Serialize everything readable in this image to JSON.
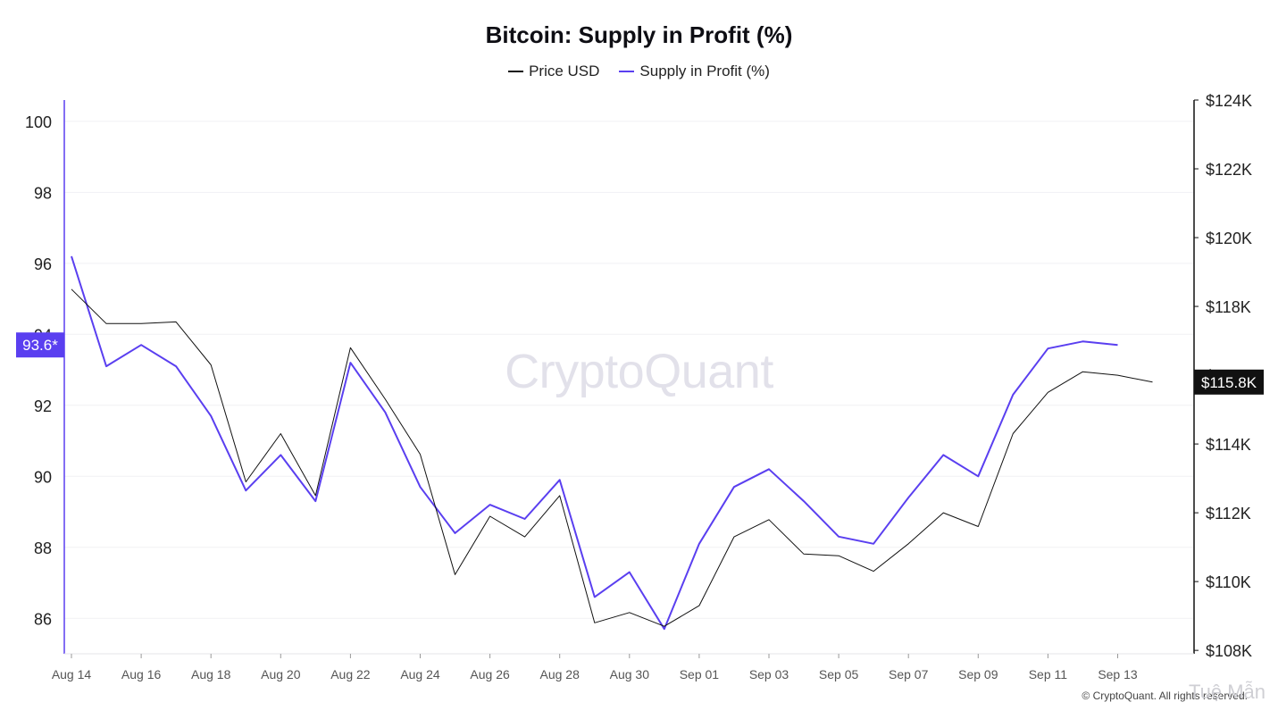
{
  "header": {
    "title": "Bitcoin: Supply in Profit (%)"
  },
  "legend": [
    {
      "label": "Price USD",
      "color": "#111111"
    },
    {
      "label": "Supply in Profit (%)",
      "color": "#5a3ff0"
    }
  ],
  "watermark": "CryptoQuant",
  "copyright": "© CryptoQuant. All rights reserved.",
  "overlay_text": "Tuệ Mẫn",
  "colors": {
    "supply_line": "#5a3ff0",
    "price_line": "#111111",
    "left_badge_bg": "#5a3ff0",
    "right_badge_bg": "#111111",
    "grid": "#f1f1f4"
  },
  "chart_data": {
    "type": "line",
    "title": "Bitcoin: Supply in Profit (%)",
    "x": [
      "Aug 14",
      "Aug 15",
      "Aug 16",
      "Aug 17",
      "Aug 18",
      "Aug 19",
      "Aug 20",
      "Aug 21",
      "Aug 22",
      "Aug 23",
      "Aug 24",
      "Aug 25",
      "Aug 26",
      "Aug 27",
      "Aug 28",
      "Aug 29",
      "Aug 30",
      "Aug 31",
      "Sep 01",
      "Sep 02",
      "Sep 03",
      "Sep 04",
      "Sep 05",
      "Sep 06",
      "Sep 07",
      "Sep 08",
      "Sep 09",
      "Sep 10",
      "Sep 11",
      "Sep 12",
      "Sep 13",
      "Sep 14"
    ],
    "x_ticks": [
      "Aug 14",
      "Aug 16",
      "Aug 18",
      "Aug 20",
      "Aug 22",
      "Aug 24",
      "Aug 26",
      "Aug 28",
      "Aug 30",
      "Sep 01",
      "Sep 03",
      "Sep 05",
      "Sep 07",
      "Sep 09",
      "Sep 11",
      "Sep 13"
    ],
    "series": [
      {
        "name": "Supply in Profit (%)",
        "axis": "left",
        "values": [
          96.2,
          93.1,
          93.7,
          93.1,
          91.7,
          89.6,
          90.6,
          89.3,
          93.2,
          91.8,
          89.7,
          88.4,
          89.2,
          88.8,
          89.9,
          86.6,
          87.3,
          85.7,
          88.1,
          89.7,
          90.2,
          89.3,
          88.3,
          88.1,
          89.4,
          90.6,
          90.0,
          92.3,
          93.6,
          93.8,
          93.7,
          null
        ],
        "last_label": "93.6*"
      },
      {
        "name": "Price USD",
        "axis": "right",
        "values": [
          118500,
          117500,
          117500,
          117550,
          116300,
          112900,
          114300,
          112500,
          116800,
          115300,
          113700,
          110200,
          111900,
          111300,
          112500,
          108800,
          109100,
          108700,
          109300,
          111300,
          111800,
          110800,
          110750,
          110300,
          111100,
          112000,
          111600,
          114300,
          115500,
          116100,
          116000,
          115800
        ],
        "last_label": "$115.8K"
      }
    ],
    "y_left": {
      "ticks": [
        86,
        88,
        90,
        92,
        94,
        96,
        98,
        100
      ],
      "ylim": [
        85,
        100.6
      ]
    },
    "y_right": {
      "ticks": [
        "$108K",
        "$110K",
        "$112K",
        "$114K",
        "$116K",
        "$118K",
        "$120K",
        "$122K",
        "$124K"
      ],
      "tick_values": [
        108000,
        110000,
        112000,
        114000,
        116000,
        118000,
        120000,
        122000,
        124000
      ],
      "ylim": [
        107900,
        124000
      ]
    },
    "grid": true,
    "legend_position": "top-center"
  }
}
